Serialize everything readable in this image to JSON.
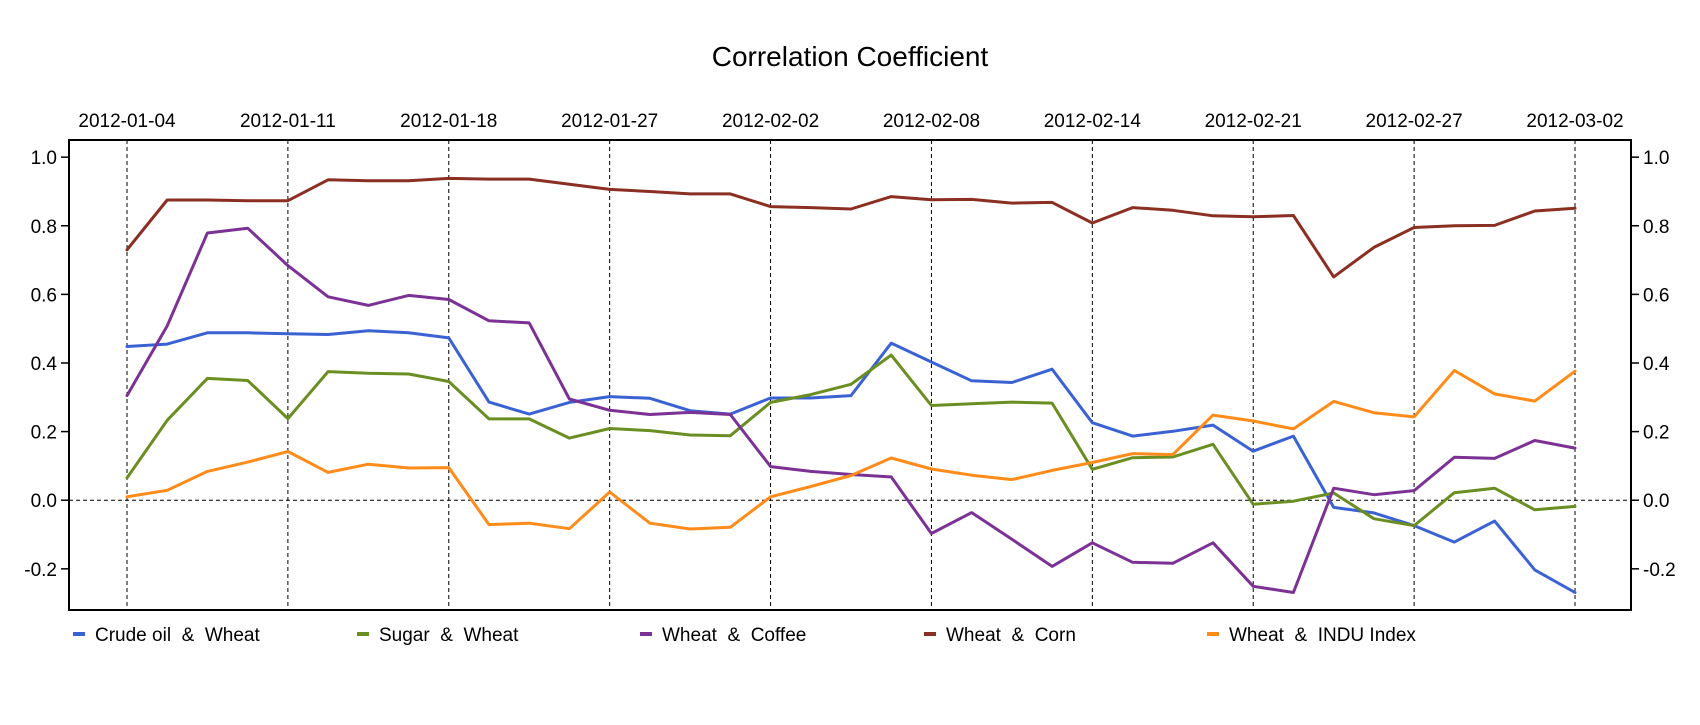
{
  "chart_data": {
    "type": "line",
    "title": "Correlation Coefficient",
    "xlabel": "",
    "ylabel": "",
    "ylim": [
      -0.32,
      1.05
    ],
    "y_ticks": [
      -0.2,
      0.0,
      0.2,
      0.4,
      0.6,
      0.8,
      1.0
    ],
    "y_tick_labels": [
      "-0.2",
      "0.0",
      "0.2",
      "0.4",
      "0.6",
      "0.8",
      "1.0"
    ],
    "x_count": 37,
    "x_tick_indices": [
      0,
      4,
      8,
      12,
      16,
      20,
      24,
      28,
      32,
      36
    ],
    "x_tick_labels": [
      "2012-01-04",
      "2012-01-11",
      "2012-01-18",
      "2012-01-27",
      "2012-02-02",
      "2012-02-08",
      "2012-02-14",
      "2012-02-21",
      "2012-02-27",
      "2012-03-02"
    ],
    "grid": "vertical dashed lines at labeled dates, dashed zero line",
    "legend_position": "bottom",
    "series": [
      {
        "name": "Crude oil  &  Wheat",
        "color": "#3b62d3",
        "values": [
          0.448,
          0.455,
          0.488,
          0.488,
          0.485,
          0.483,
          0.494,
          0.488,
          0.473,
          0.286,
          0.251,
          0.285,
          0.302,
          0.297,
          0.261,
          0.251,
          0.298,
          0.298,
          0.305,
          0.458,
          0.403,
          0.348,
          0.343,
          0.382,
          0.226,
          0.187,
          0.201,
          0.219,
          0.143,
          0.187,
          -0.021,
          -0.037,
          -0.074,
          -0.122,
          -0.061,
          -0.203,
          -0.269
        ]
      },
      {
        "name": "Sugar  &  Wheat",
        "color": "#6b8e23",
        "values": [
          0.065,
          0.233,
          0.355,
          0.349,
          0.238,
          0.375,
          0.37,
          0.368,
          0.346,
          0.237,
          0.237,
          0.181,
          0.209,
          0.203,
          0.19,
          0.188,
          0.285,
          0.308,
          0.338,
          0.423,
          0.276,
          0.281,
          0.286,
          0.283,
          0.09,
          0.124,
          0.126,
          0.163,
          -0.012,
          -0.003,
          0.021,
          -0.054,
          -0.074,
          0.022,
          0.035,
          -0.028,
          -0.018
        ]
      },
      {
        "name": "Wheat  &  Coffee",
        "color": "#7b3294",
        "values": [
          0.305,
          0.508,
          0.779,
          0.793,
          0.684,
          0.593,
          0.568,
          0.597,
          0.585,
          0.523,
          0.517,
          0.295,
          0.262,
          0.25,
          0.256,
          0.25,
          0.098,
          0.084,
          0.075,
          0.068,
          -0.097,
          -0.036,
          -0.114,
          -0.193,
          -0.124,
          -0.181,
          -0.184,
          -0.124,
          -0.251,
          -0.269,
          0.035,
          0.016,
          0.028,
          0.125,
          0.122,
          0.174,
          0.152
        ]
      },
      {
        "name": "Wheat  &  Corn",
        "color": "#8b2f22",
        "values": [
          0.73,
          0.875,
          0.875,
          0.873,
          0.873,
          0.934,
          0.931,
          0.931,
          0.938,
          0.936,
          0.936,
          0.921,
          0.906,
          0.9,
          0.893,
          0.893,
          0.856,
          0.853,
          0.849,
          0.885,
          0.876,
          0.877,
          0.866,
          0.868,
          0.808,
          0.853,
          0.845,
          0.829,
          0.826,
          0.83,
          0.651,
          0.737,
          0.795,
          0.8,
          0.801,
          0.843,
          0.851
        ]
      },
      {
        "name": "Wheat  &  INDU Index",
        "color": "#ff8c1a",
        "values": [
          0.01,
          0.029,
          0.084,
          0.111,
          0.142,
          0.081,
          0.105,
          0.094,
          0.095,
          -0.071,
          -0.067,
          -0.083,
          0.024,
          -0.067,
          -0.084,
          -0.079,
          0.01,
          0.04,
          0.072,
          0.123,
          0.091,
          0.073,
          0.06,
          0.087,
          0.11,
          0.136,
          0.133,
          0.248,
          0.231,
          0.208,
          0.288,
          0.255,
          0.243,
          0.378,
          0.31,
          0.289,
          0.376
        ]
      }
    ]
  }
}
